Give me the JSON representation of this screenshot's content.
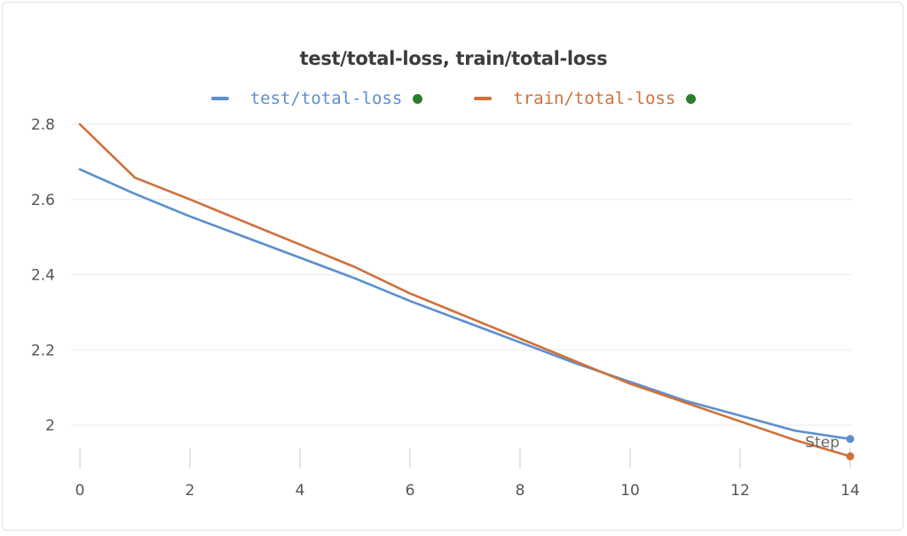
{
  "chart_data": {
    "type": "line",
    "title": "test/total-loss, train/total-loss",
    "xlabel": "Step",
    "ylabel": "",
    "xlim": [
      0,
      14
    ],
    "ylim": [
      1.9,
      2.85
    ],
    "x_ticks": [
      0,
      2,
      4,
      6,
      8,
      10,
      12,
      14
    ],
    "y_ticks": [
      2,
      2.2,
      2.4,
      2.6,
      2.8
    ],
    "y_tick_labels": [
      "2",
      "2.2",
      "2.4",
      "2.6",
      "2.8"
    ],
    "grid": "horizontal",
    "legend_position": "top-center",
    "series": [
      {
        "name": "test/total-loss",
        "color": "#5b8fd0",
        "x": [
          0,
          1,
          2,
          3,
          4,
          5,
          6,
          7,
          8,
          9,
          10,
          11,
          12,
          13,
          14
        ],
        "values": [
          2.68,
          2.615,
          2.555,
          2.5,
          2.445,
          2.39,
          2.33,
          2.275,
          2.22,
          2.165,
          2.115,
          2.065,
          2.025,
          1.985,
          1.963
        ]
      },
      {
        "name": "train/total-loss",
        "color": "#d0703a",
        "x": [
          0,
          1,
          2,
          3,
          4,
          5,
          6,
          7,
          8,
          9,
          10,
          11,
          12,
          13,
          14
        ],
        "values": [
          2.8,
          2.658,
          2.6,
          2.54,
          2.48,
          2.42,
          2.35,
          2.29,
          2.23,
          2.17,
          2.11,
          2.06,
          2.01,
          1.96,
          1.917
        ]
      }
    ]
  },
  "legend_indicator_color": "#2e7d2e"
}
